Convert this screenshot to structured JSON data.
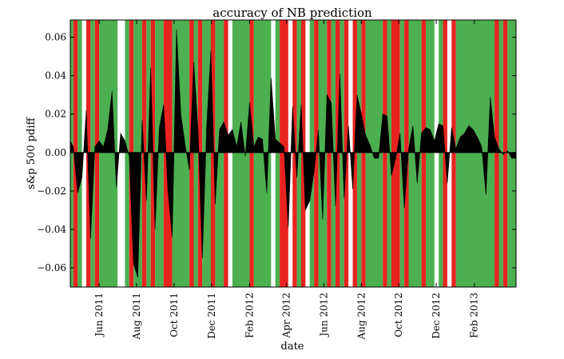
{
  "chart_data": {
    "type": "area",
    "title": "accuracy of NB prediction",
    "xlabel": "date",
    "ylabel": "s&p 500 pdiff",
    "colors": {
      "correct": "#4caf50",
      "incorrect": "#e8231f",
      "area": "#000000"
    },
    "xlim": [
      "2011-04-15",
      "2013-04-10"
    ],
    "ylim": [
      -0.07,
      0.069
    ],
    "yticks": [
      -0.06,
      -0.04,
      -0.02,
      0.0,
      0.02,
      0.04,
      0.06
    ],
    "ytick_labels": [
      "−0.06",
      "−0.04",
      "−0.02",
      "0.00",
      "0.02",
      "0.04",
      "0.06"
    ],
    "xticks": [
      "2011-06-01",
      "2011-08-01",
      "2011-10-01",
      "2011-12-01",
      "2012-02-01",
      "2012-04-01",
      "2012-06-01",
      "2012-08-01",
      "2012-10-01",
      "2012-12-01",
      "2013-02-01"
    ],
    "xtick_labels": [
      "Jun 2011",
      "Aug 2011",
      "Oct 2011",
      "Dec 2011",
      "Feb 2012",
      "Apr 2012",
      "Jun 2012",
      "Aug 2012",
      "Oct 2012",
      "Dec 2012",
      "Feb 2013"
    ],
    "prediction_bands": [
      {
        "start": "2011-04-15",
        "end": "2011-04-20",
        "result": "correct"
      },
      {
        "start": "2011-04-20",
        "end": "2011-04-27",
        "result": "incorrect"
      },
      {
        "start": "2011-04-27",
        "end": "2011-05-04",
        "result": "correct"
      },
      {
        "start": "2011-05-11",
        "end": "2011-05-18",
        "result": "incorrect"
      },
      {
        "start": "2011-05-18",
        "end": "2011-05-25",
        "result": "correct"
      },
      {
        "start": "2011-05-25",
        "end": "2011-06-01",
        "result": "incorrect"
      },
      {
        "start": "2011-06-01",
        "end": "2011-07-01",
        "result": "correct"
      },
      {
        "start": "2011-07-13",
        "end": "2011-07-20",
        "result": "correct"
      },
      {
        "start": "2011-07-20",
        "end": "2011-07-27",
        "result": "incorrect"
      },
      {
        "start": "2011-07-27",
        "end": "2011-08-10",
        "result": "correct"
      },
      {
        "start": "2011-08-10",
        "end": "2011-08-17",
        "result": "incorrect"
      },
      {
        "start": "2011-08-17",
        "end": "2011-08-24",
        "result": "correct"
      },
      {
        "start": "2011-08-24",
        "end": "2011-08-31",
        "result": "incorrect"
      },
      {
        "start": "2011-08-31",
        "end": "2011-09-14",
        "result": "correct"
      },
      {
        "start": "2011-09-14",
        "end": "2011-09-28",
        "result": "incorrect"
      },
      {
        "start": "2011-09-28",
        "end": "2011-10-26",
        "result": "correct"
      },
      {
        "start": "2011-10-26",
        "end": "2011-11-02",
        "result": "incorrect"
      },
      {
        "start": "2011-11-02",
        "end": "2011-11-09",
        "result": "correct"
      },
      {
        "start": "2011-11-09",
        "end": "2011-11-16",
        "result": "incorrect"
      },
      {
        "start": "2011-11-16",
        "end": "2011-11-30",
        "result": "correct"
      },
      {
        "start": "2011-11-30",
        "end": "2011-12-07",
        "result": "incorrect"
      },
      {
        "start": "2011-12-07",
        "end": "2011-12-21",
        "result": "correct"
      },
      {
        "start": "2011-12-21",
        "end": "2011-12-28",
        "result": "incorrect"
      },
      {
        "start": "2012-01-04",
        "end": "2012-02-01",
        "result": "correct"
      },
      {
        "start": "2012-02-01",
        "end": "2012-02-08",
        "result": "incorrect"
      },
      {
        "start": "2012-02-08",
        "end": "2012-03-07",
        "result": "correct"
      },
      {
        "start": "2012-03-14",
        "end": "2012-03-21",
        "result": "correct"
      },
      {
        "start": "2012-03-21",
        "end": "2012-04-04",
        "result": "incorrect"
      },
      {
        "start": "2012-04-11",
        "end": "2012-04-18",
        "result": "incorrect"
      },
      {
        "start": "2012-04-18",
        "end": "2012-04-25",
        "result": "correct"
      },
      {
        "start": "2012-04-25",
        "end": "2012-05-02",
        "result": "incorrect"
      },
      {
        "start": "2012-05-09",
        "end": "2012-05-16",
        "result": "correct"
      },
      {
        "start": "2012-05-16",
        "end": "2012-05-23",
        "result": "incorrect"
      },
      {
        "start": "2012-05-23",
        "end": "2012-06-06",
        "result": "correct"
      },
      {
        "start": "2012-06-06",
        "end": "2012-06-13",
        "result": "incorrect"
      },
      {
        "start": "2012-06-13",
        "end": "2012-06-20",
        "result": "correct"
      },
      {
        "start": "2012-06-20",
        "end": "2012-06-27",
        "result": "incorrect"
      },
      {
        "start": "2012-06-27",
        "end": "2012-07-04",
        "result": "correct"
      },
      {
        "start": "2012-07-04",
        "end": "2012-07-11",
        "result": "incorrect"
      },
      {
        "start": "2012-07-18",
        "end": "2012-07-25",
        "result": "incorrect"
      },
      {
        "start": "2012-07-25",
        "end": "2012-08-01",
        "result": "correct"
      },
      {
        "start": "2012-08-01",
        "end": "2012-08-08",
        "result": "incorrect"
      },
      {
        "start": "2012-08-08",
        "end": "2012-09-05",
        "result": "correct"
      },
      {
        "start": "2012-09-05",
        "end": "2012-09-12",
        "result": "incorrect"
      },
      {
        "start": "2012-09-12",
        "end": "2012-09-19",
        "result": "correct"
      },
      {
        "start": "2012-09-19",
        "end": "2012-10-03",
        "result": "incorrect"
      },
      {
        "start": "2012-10-03",
        "end": "2012-10-10",
        "result": "correct"
      },
      {
        "start": "2012-10-10",
        "end": "2012-10-17",
        "result": "incorrect"
      },
      {
        "start": "2012-10-17",
        "end": "2012-11-07",
        "result": "correct"
      },
      {
        "start": "2012-11-07",
        "end": "2012-11-14",
        "result": "incorrect"
      },
      {
        "start": "2012-11-14",
        "end": "2012-11-28",
        "result": "correct"
      },
      {
        "start": "2012-12-05",
        "end": "2012-12-12",
        "result": "correct"
      },
      {
        "start": "2012-12-12",
        "end": "2012-12-19",
        "result": "incorrect"
      },
      {
        "start": "2012-12-26",
        "end": "2013-01-02",
        "result": "incorrect"
      },
      {
        "start": "2013-01-02",
        "end": "2013-03-06",
        "result": "correct"
      },
      {
        "start": "2013-03-06",
        "end": "2013-03-13",
        "result": "incorrect"
      },
      {
        "start": "2013-03-13",
        "end": "2013-03-20",
        "result": "correct"
      },
      {
        "start": "2013-03-20",
        "end": "2013-03-27",
        "result": "incorrect"
      },
      {
        "start": "2013-03-27",
        "end": "2013-04-10",
        "result": "correct"
      }
    ],
    "series": [
      {
        "x": [
          "2011-04-15",
          "2011-04-20",
          "2011-04-27",
          "2011-05-04",
          "2011-05-11",
          "2011-05-18",
          "2011-05-25",
          "2011-06-01",
          "2011-06-08",
          "2011-06-15",
          "2011-06-22",
          "2011-06-29",
          "2011-07-06",
          "2011-07-13",
          "2011-07-20",
          "2011-07-27",
          "2011-08-03",
          "2011-08-10",
          "2011-08-17",
          "2011-08-24",
          "2011-08-31",
          "2011-09-07",
          "2011-09-14",
          "2011-09-21",
          "2011-09-28",
          "2011-10-05",
          "2011-10-12",
          "2011-10-19",
          "2011-10-26",
          "2011-11-02",
          "2011-11-09",
          "2011-11-16",
          "2011-11-23",
          "2011-11-30",
          "2011-12-07",
          "2011-12-14",
          "2011-12-21",
          "2011-12-28",
          "2012-01-04",
          "2012-01-11",
          "2012-01-18",
          "2012-01-25",
          "2012-02-01",
          "2012-02-08",
          "2012-02-15",
          "2012-02-22",
          "2012-02-29",
          "2012-03-07",
          "2012-03-14",
          "2012-03-21",
          "2012-03-28",
          "2012-04-04",
          "2012-04-11",
          "2012-04-18",
          "2012-04-25",
          "2012-05-02",
          "2012-05-09",
          "2012-05-16",
          "2012-05-23",
          "2012-05-30",
          "2012-06-06",
          "2012-06-13",
          "2012-06-20",
          "2012-06-27",
          "2012-07-04",
          "2012-07-11",
          "2012-07-18",
          "2012-07-25",
          "2012-08-01",
          "2012-08-08",
          "2012-08-15",
          "2012-08-22",
          "2012-08-29",
          "2012-09-05",
          "2012-09-12",
          "2012-09-19",
          "2012-09-26",
          "2012-10-03",
          "2012-10-10",
          "2012-10-17",
          "2012-10-24",
          "2012-10-31",
          "2012-11-07",
          "2012-11-14",
          "2012-11-21",
          "2012-11-28",
          "2012-12-05",
          "2012-12-12",
          "2012-12-19",
          "2012-12-26",
          "2013-01-02",
          "2013-01-09",
          "2013-01-16",
          "2013-01-23",
          "2013-01-30",
          "2013-02-06",
          "2013-02-13",
          "2013-02-20",
          "2013-02-27",
          "2013-03-06",
          "2013-03-13",
          "2013-03-20",
          "2013-03-27",
          "2013-04-03",
          "2013-04-10"
        ],
        "y": [
          0.006,
          0.003,
          -0.021,
          -0.013,
          0.022,
          -0.045,
          0.003,
          0.006,
          0.003,
          0.012,
          0.032,
          -0.018,
          0.01,
          0.006,
          -0.002,
          -0.058,
          -0.065,
          0.017,
          -0.025,
          0.044,
          -0.04,
          0.013,
          0.025,
          -0.02,
          -0.044,
          0.064,
          0.02,
          0.004,
          -0.009,
          0.047,
          0.012,
          -0.055,
          0.013,
          0.053,
          -0.027,
          0.012,
          0.016,
          0.009,
          0.012,
          0.003,
          0.016,
          -0.002,
          0.026,
          0.003,
          0.008,
          0.007,
          -0.021,
          0.039,
          0.007,
          0.005,
          0.003,
          -0.039,
          0.024,
          -0.013,
          0.025,
          -0.03,
          -0.025,
          -0.01,
          0.012,
          -0.035,
          0.03,
          0.026,
          -0.028,
          0.041,
          -0.024,
          0.014,
          -0.019,
          0.03,
          0.02,
          0.009,
          0.004,
          -0.003,
          -0.003,
          0.02,
          0.019,
          -0.012,
          -0.003,
          0.01,
          -0.029,
          0.002,
          0.014,
          -0.016,
          0.01,
          0.013,
          0.012,
          0.006,
          0.015,
          0.014,
          -0.016,
          0.013,
          0.002,
          0.008,
          0.01,
          0.014,
          0.012,
          0.008,
          0.003,
          -0.022,
          0.029,
          0.008,
          0.002,
          -0.001,
          0.001,
          -0.003,
          -0.003
        ]
      }
    ]
  }
}
